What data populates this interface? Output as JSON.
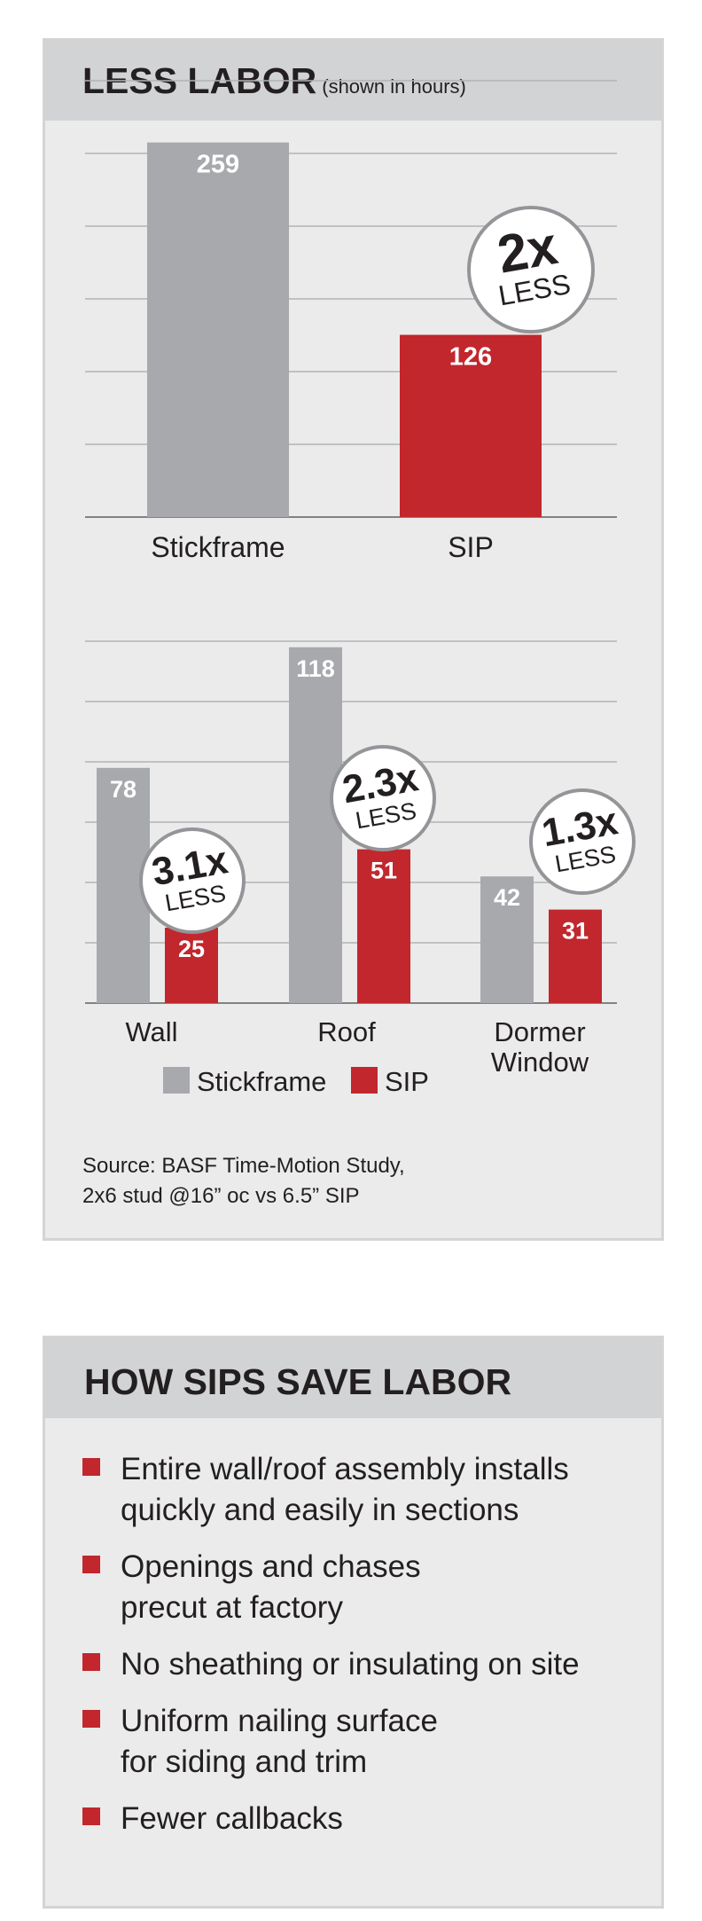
{
  "colors": {
    "stickframe": "#a7a9ac",
    "sip": "#c1272d",
    "panel": "#ebebeb",
    "header": "#d2d3d4"
  },
  "labor": {
    "title": "LESS LABOR",
    "subtitle": "(shown in hours)",
    "source_line1": "Source: BASF Time-Motion Study,",
    "source_line2": "2x6 stud @16” oc vs 6.5” SIP"
  },
  "chart_data": [
    {
      "type": "bar",
      "categories": [
        "Stickframe",
        "SIP"
      ],
      "values": [
        259,
        126
      ],
      "colors": [
        "#a7a9ac",
        "#c1272d"
      ],
      "ylim": [
        0,
        260
      ],
      "grid": true,
      "annotation": {
        "big": "2x",
        "small": "LESS"
      }
    },
    {
      "type": "bar",
      "categories": [
        "Wall",
        "Roof",
        "Dormer\nWindow"
      ],
      "series": [
        {
          "name": "Stickframe",
          "values": [
            78,
            118,
            42
          ]
        },
        {
          "name": "SIP",
          "values": [
            25,
            51,
            31
          ]
        }
      ],
      "ylim": [
        0,
        120
      ],
      "grid": true,
      "legend": "bottom",
      "annotations": [
        {
          "big": "3.1x",
          "small": "LESS"
        },
        {
          "big": "2.3x",
          "small": "LESS"
        },
        {
          "big": "1.3x",
          "small": "LESS"
        }
      ]
    }
  ],
  "how": {
    "title": "HOW SIPS SAVE LABOR",
    "bullets": [
      "Entire wall/roof assembly installs\nquickly and easily in sections",
      "Openings and chases\nprecut at factory",
      "No sheathing or insulating on site",
      "Uniform nailing surface\nfor siding and trim",
      "Fewer callbacks"
    ]
  }
}
